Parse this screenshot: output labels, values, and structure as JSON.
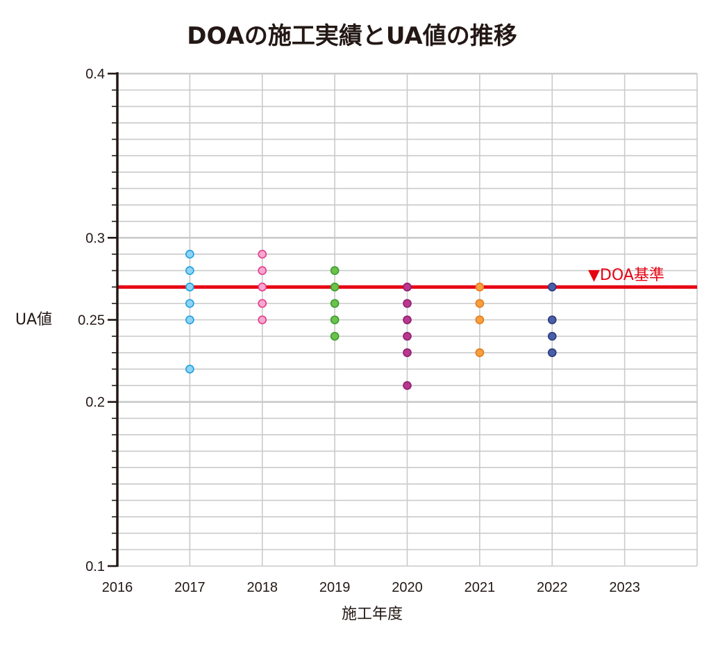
{
  "chart_data": {
    "type": "scatter",
    "title": "DOAの施工実績とUA値の推移",
    "xlabel": "施工年度",
    "ylabel": "UA値",
    "xlim": [
      2016,
      2024
    ],
    "ylim": [
      0.1,
      0.4
    ],
    "x_ticks": [
      "2016",
      "2017",
      "2018",
      "2019",
      "2020",
      "2021",
      "2022",
      "2023"
    ],
    "y_ticks": [
      {
        "value": 0.1,
        "label": "0.1"
      },
      {
        "value": 0.2,
        "label": "0.2"
      },
      {
        "value": 0.25,
        "label": "0.25"
      },
      {
        "value": 0.3,
        "label": "0.3"
      },
      {
        "value": 0.4,
        "label": "0.4"
      }
    ],
    "grid": true,
    "reference_line": {
      "value": 0.27,
      "label": "▼DOA基準",
      "color": "#e60012"
    },
    "series": [
      {
        "x": 2017,
        "values": [
          0.29,
          0.28,
          0.27,
          0.26,
          0.25,
          0.22
        ],
        "fill": "#8fd3f4",
        "stroke": "#1aa0e0"
      },
      {
        "x": 2018,
        "values": [
          0.29,
          0.28,
          0.27,
          0.26,
          0.25
        ],
        "fill": "#f7a8cf",
        "stroke": "#e4398a"
      },
      {
        "x": 2019,
        "values": [
          0.28,
          0.27,
          0.26,
          0.25,
          0.24
        ],
        "fill": "#6cc24a",
        "stroke": "#3a9a2e"
      },
      {
        "x": 2020,
        "values": [
          0.27,
          0.26,
          0.25,
          0.24,
          0.23,
          0.21
        ],
        "fill": "#b9388f",
        "stroke": "#8e1f6c"
      },
      {
        "x": 2021,
        "values": [
          0.27,
          0.26,
          0.25,
          0.23
        ],
        "fill": "#f6a044",
        "stroke": "#e87811"
      },
      {
        "x": 2022,
        "values": [
          0.27,
          0.25,
          0.24,
          0.23
        ],
        "fill": "#4a5fa8",
        "stroke": "#2b3a7a"
      }
    ],
    "colors": {
      "grid_major": "#c9caca",
      "grid_minor": "#c9caca",
      "axis": "#231815",
      "text": "#231815"
    }
  }
}
